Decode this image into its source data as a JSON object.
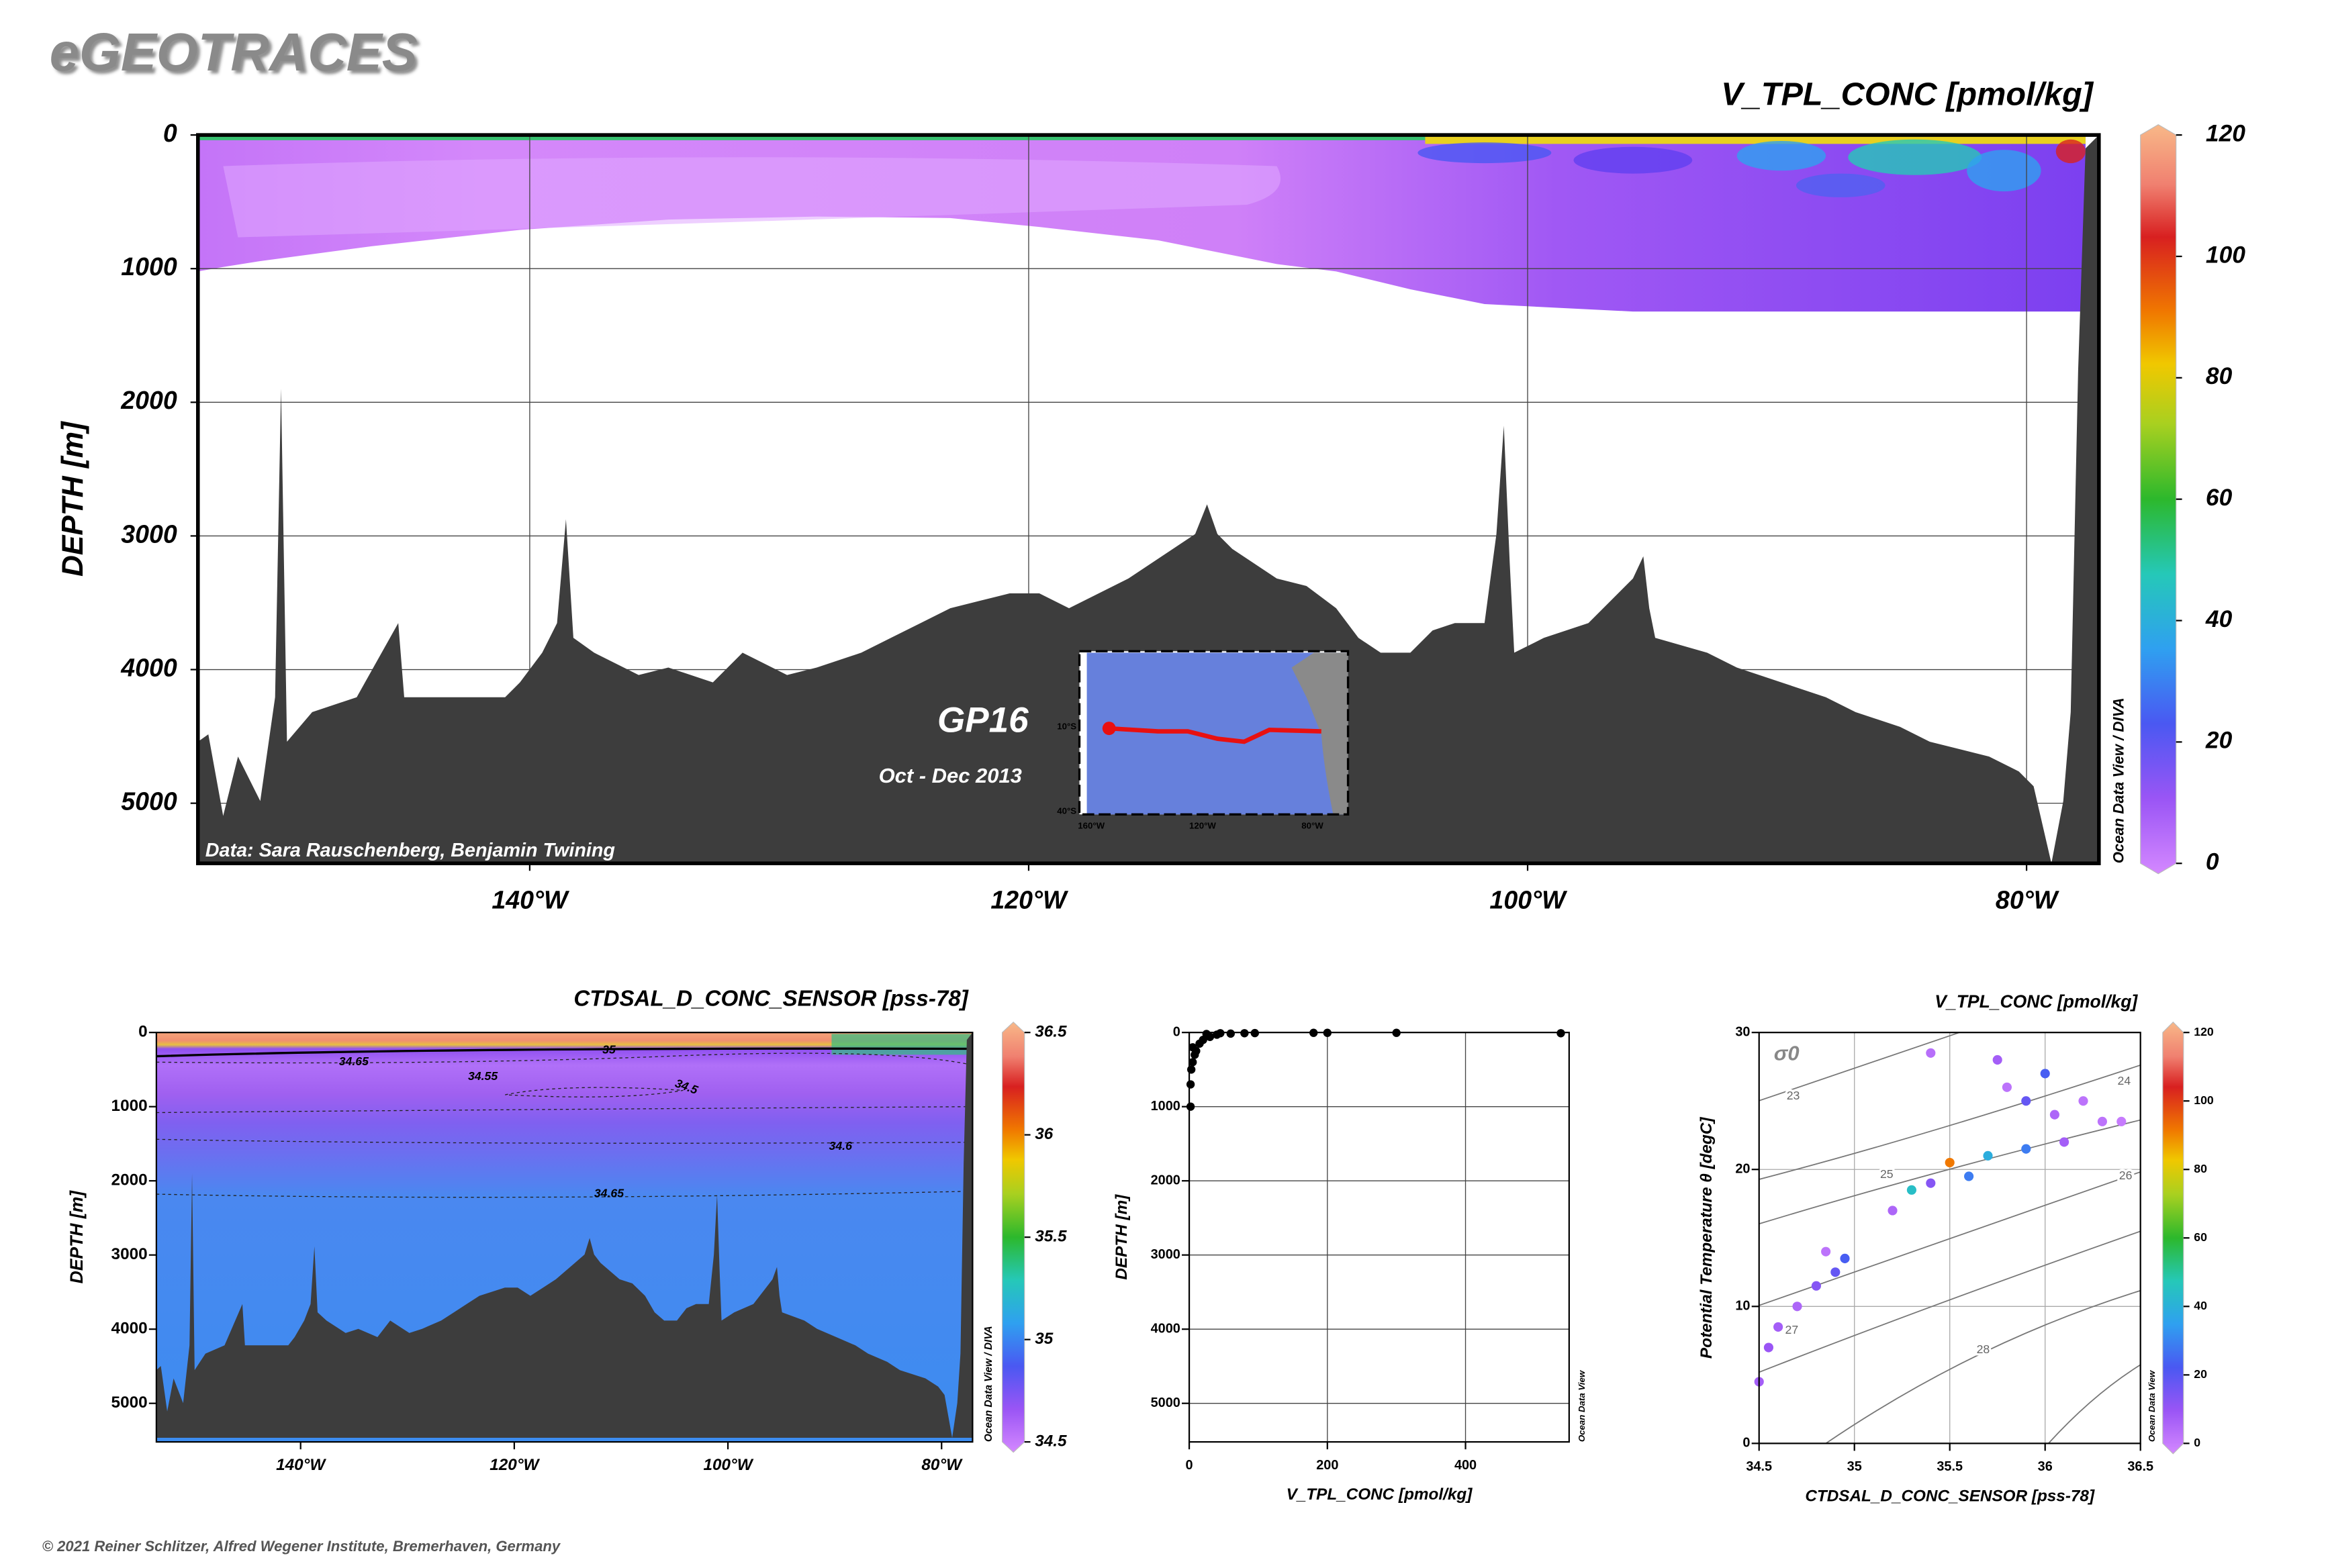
{
  "header": {
    "title": "eGEOTRACES"
  },
  "footer": "© 2021 Reiner Schlitzer, Alfred Wegener Institute, Bremerhaven, Germany",
  "chart_data": [
    {
      "type": "section",
      "title": "V_TPL_CONC [pmol/kg]",
      "y_label": "DEPTH [m]",
      "xlim": [
        -153.3,
        -77.1
      ],
      "xticks": [
        {
          "value": -140,
          "label": "140°W"
        },
        {
          "value": -120,
          "label": "120°W"
        },
        {
          "value": -100,
          "label": "100°W"
        },
        {
          "value": -80,
          "label": "80°W"
        }
      ],
      "ylim": [
        5450,
        0
      ],
      "yticks": [
        0,
        1000,
        2000,
        3000,
        4000,
        5000
      ],
      "grid": true,
      "colorbar": {
        "lim": [
          0,
          120
        ],
        "ticks": [
          0,
          20,
          40,
          60,
          80,
          100,
          120
        ],
        "label": "Ocean Data View / DIVA"
      },
      "annotations": [
        "GP16",
        "Oct - Dec 2013",
        "Data: Sara Rauschenberg, Benjamin Twining"
      ],
      "inset_map": {
        "lat_labels": [
          "10°S",
          "40°S"
        ],
        "lon_labels": [
          "160°W",
          "120°W",
          "80°W"
        ]
      }
    },
    {
      "type": "section",
      "title": "CTDSAL_D_CONC_SENSOR [pss-78]",
      "y_label": "DEPTH [m]",
      "xlim": [
        -153.5,
        -77.1
      ],
      "xticks": [
        {
          "value": -140,
          "label": "140°W"
        },
        {
          "value": -120,
          "label": "120°W"
        },
        {
          "value": -100,
          "label": "100°W"
        },
        {
          "value": -80,
          "label": "80°W"
        }
      ],
      "ylim": [
        5520,
        0
      ],
      "yticks": [
        0,
        1000,
        2000,
        3000,
        4000,
        5000
      ],
      "grid": false,
      "colorbar": {
        "lim": [
          34.5,
          36.5
        ],
        "ticks": [
          34.5,
          35,
          35.5,
          36,
          36.5
        ],
        "label": "Ocean Data View / DIVA"
      },
      "contour_labels": [
        34.65,
        34.55,
        34.5,
        34.6,
        34.65,
        35
      ]
    },
    {
      "type": "scatter",
      "x_label": "V_TPL_CONC [pmol/kg]",
      "y_label": "DEPTH [m]",
      "xlim": [
        0,
        550
      ],
      "xticks": [
        0,
        200,
        400
      ],
      "ylim": [
        5520,
        0
      ],
      "yticks": [
        0,
        1000,
        2000,
        3000,
        4000,
        5000
      ],
      "grid": true,
      "color": "#000000",
      "side_label": "Ocean Data View",
      "x": [
        538,
        300,
        200,
        180,
        95,
        80,
        60,
        45,
        40,
        30,
        25,
        20,
        15,
        10,
        8,
        5,
        5,
        3,
        2,
        2
      ],
      "values": [
        10,
        5,
        5,
        5,
        8,
        10,
        15,
        10,
        30,
        60,
        20,
        100,
        150,
        250,
        300,
        200,
        400,
        500,
        700,
        1000
      ]
    },
    {
      "type": "scatter",
      "title": "V_TPL_CONC [pmol/kg]",
      "x_label": "CTDSAL_D_CONC_SENSOR [pss-78]",
      "y_label": "Potential Temperature θ [degC]",
      "xlim": [
        34.5,
        36.5
      ],
      "xticks": [
        34.5,
        35,
        35.5,
        36,
        36.5
      ],
      "ylim": [
        0,
        30
      ],
      "yticks": [
        0,
        10,
        20,
        30
      ],
      "grid": true,
      "colorbar": {
        "lim": [
          0,
          120
        ],
        "ticks": [
          0,
          20,
          40,
          60,
          80,
          100,
          120
        ],
        "label": "Ocean Data View"
      },
      "isopycnal_label": "σ0",
      "isopycnals": [
        23,
        24,
        25,
        26,
        27,
        28
      ],
      "x": [
        34.5,
        34.55,
        34.6,
        34.7,
        34.8,
        34.9,
        34.95,
        34.85,
        35.2,
        35.3,
        35.4,
        35.5,
        35.6,
        35.7,
        35.75,
        35.8,
        35.9,
        36.0,
        36.05,
        36.1,
        36.2,
        36.3,
        35.9,
        36.4,
        35.4
      ],
      "values": [
        4.5,
        7,
        8.5,
        10,
        11.5,
        12.5,
        13.5,
        14,
        17,
        18.5,
        19,
        20.5,
        19.5,
        21,
        28,
        26,
        25,
        27,
        24,
        22,
        25,
        23.5,
        21.5,
        23.5,
        28.5
      ],
      "color_values": [
        10,
        12,
        10,
        8,
        15,
        20,
        25,
        5,
        8,
        45,
        15,
        90,
        30,
        40,
        10,
        5,
        20,
        25,
        8,
        10,
        5,
        5,
        30,
        3,
        6
      ]
    }
  ]
}
